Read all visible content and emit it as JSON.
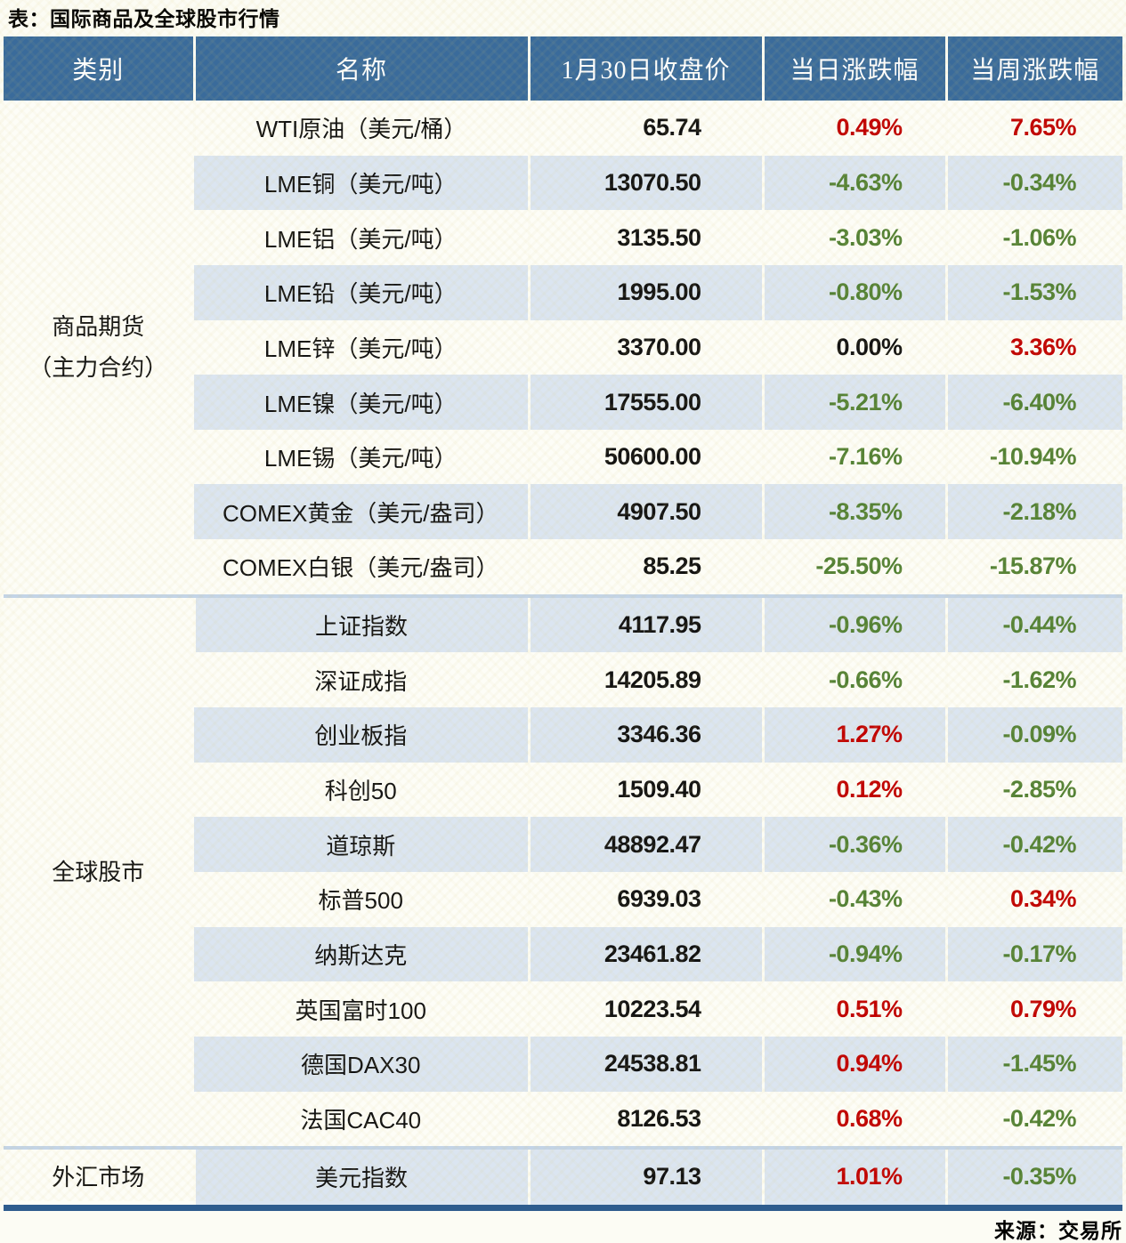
{
  "chart_data": {
    "type": "table",
    "title": "表：国际商品及全球股市行情",
    "source": "来源：交易所",
    "columns": [
      "类别",
      "名称",
      "1月30日收盘价",
      "当日涨跌幅",
      "当周涨跌幅"
    ],
    "groups": [
      {
        "category_lines": [
          "商品期货",
          "（主力合约）"
        ],
        "rows": [
          {
            "name": "WTI原油（美元/桶）",
            "close": "65.74",
            "daily": "0.49%",
            "weekly": "7.65%"
          },
          {
            "name": "LME铜（美元/吨）",
            "close": "13070.50",
            "daily": "-4.63%",
            "weekly": "-0.34%"
          },
          {
            "name": "LME铝（美元/吨）",
            "close": "3135.50",
            "daily": "-3.03%",
            "weekly": "-1.06%"
          },
          {
            "name": "LME铅（美元/吨）",
            "close": "1995.00",
            "daily": "-0.80%",
            "weekly": "-1.53%"
          },
          {
            "name": "LME锌（美元/吨）",
            "close": "3370.00",
            "daily": "0.00%",
            "weekly": "3.36%"
          },
          {
            "name": "LME镍（美元/吨）",
            "close": "17555.00",
            "daily": "-5.21%",
            "weekly": "-6.40%"
          },
          {
            "name": "LME锡（美元/吨）",
            "close": "50600.00",
            "daily": "-7.16%",
            "weekly": "-10.94%"
          },
          {
            "name": "COMEX黄金（美元/盎司）",
            "close": "4907.50",
            "daily": "-8.35%",
            "weekly": "-2.18%"
          },
          {
            "name": "COMEX白银（美元/盎司）",
            "close": "85.25",
            "daily": "-25.50%",
            "weekly": "-15.87%"
          }
        ]
      },
      {
        "category_lines": [
          "全球股市"
        ],
        "rows": [
          {
            "name": "上证指数",
            "close": "4117.95",
            "daily": "-0.96%",
            "weekly": "-0.44%"
          },
          {
            "name": "深证成指",
            "close": "14205.89",
            "daily": "-0.66%",
            "weekly": "-1.62%"
          },
          {
            "name": "创业板指",
            "close": "3346.36",
            "daily": "1.27%",
            "weekly": "-0.09%"
          },
          {
            "name": "科创50",
            "close": "1509.40",
            "daily": "0.12%",
            "weekly": "-2.85%"
          },
          {
            "name": "道琼斯",
            "close": "48892.47",
            "daily": "-0.36%",
            "weekly": "-0.42%"
          },
          {
            "name": "标普500",
            "close": "6939.03",
            "daily": "-0.43%",
            "weekly": "0.34%"
          },
          {
            "name": "纳斯达克",
            "close": "23461.82",
            "daily": "-0.94%",
            "weekly": "-0.17%"
          },
          {
            "name": "英国富时100",
            "close": "10223.54",
            "daily": "0.51%",
            "weekly": "0.79%"
          },
          {
            "name": "德国DAX30",
            "close": "24538.81",
            "daily": "0.94%",
            "weekly": "-1.45%"
          },
          {
            "name": "法国CAC40",
            "close": "8126.53",
            "daily": "0.68%",
            "weekly": "-0.42%"
          }
        ]
      },
      {
        "category_lines": [
          "外汇市场"
        ],
        "rows": [
          {
            "name": "美元指数",
            "close": "97.13",
            "daily": "1.01%",
            "weekly": "-0.35%"
          }
        ]
      }
    ],
    "colors": {
      "up": "#c00000",
      "down": "#538135",
      "flat": "#111111",
      "header_bg": "#3a6b9b",
      "header_text": "#ffffff",
      "row_bg": "#fdfdf7",
      "row_alt_bg": "#dbe5f1",
      "group_divider": "#c3d4e7",
      "bottom_border": "#2e5c8e"
    }
  }
}
